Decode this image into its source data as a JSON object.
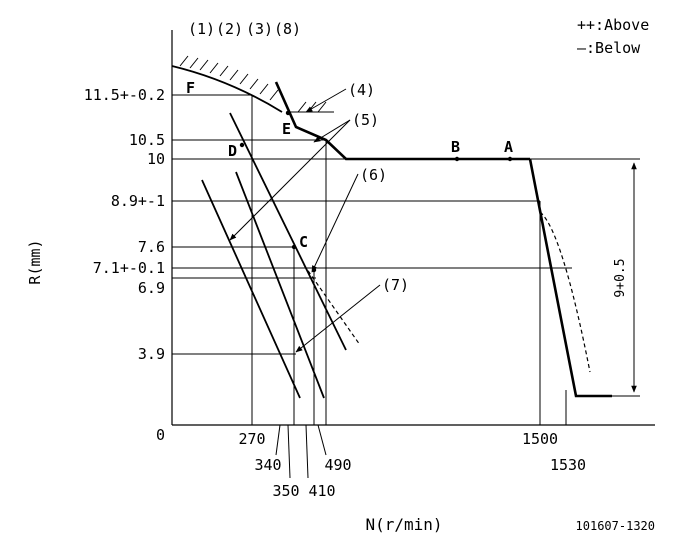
{
  "header_labels": {
    "l1": "(1)",
    "l2": "(2)",
    "l3": "(3)",
    "l8": "(8)"
  },
  "legend": {
    "above": "++:Above",
    "below": "—:Below"
  },
  "y_axis_label": "R(mm)",
  "x_axis_label": "N(r/min)",
  "drawing_number": "101607-1320",
  "y_ticks": {
    "t115": "11.5+-0.2",
    "t105": "10.5",
    "t10": "10",
    "t89": "8.9+-1",
    "t76": "7.6",
    "t71": "7.1+-0.1",
    "t69": "6.9",
    "t39": "3.9",
    "t0": "0"
  },
  "x_ticks": {
    "t270": "270",
    "t340": "340",
    "t350": "350",
    "t410": "410",
    "t490": "490",
    "t1500": "1500",
    "t1530": "1530"
  },
  "callouts": {
    "c4": "(4)",
    "c5": "(5)",
    "c6": "(6)",
    "c7": "(7)"
  },
  "points": {
    "A": "A",
    "B": "B",
    "C": "C",
    "D": "D",
    "E": "E",
    "F": "F"
  },
  "dimension": "9+0.5"
}
